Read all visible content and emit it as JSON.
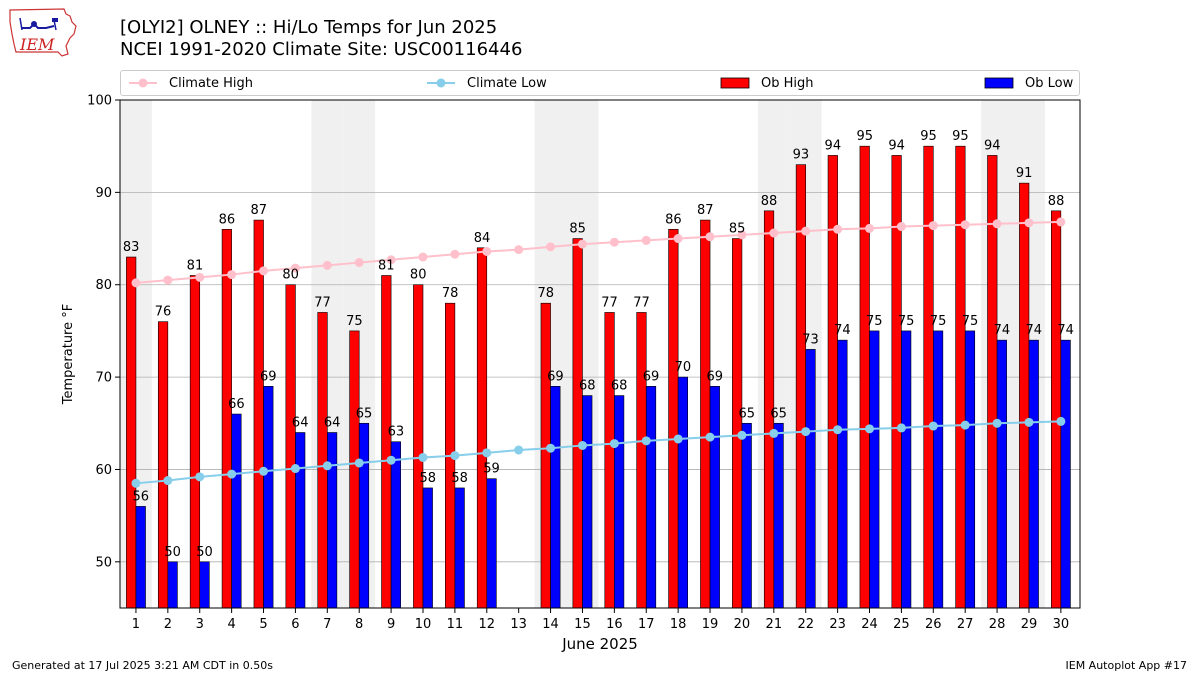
{
  "header": {
    "title_line1": "[OLYI2] OLNEY :: Hi/Lo Temps for Jun 2025",
    "title_line2": "NCEI 1991-2020 Climate Site: USC00116446"
  },
  "logo": {
    "text": "IEM"
  },
  "footer": {
    "generated": "Generated at 17 Jul 2025 3:21 AM CDT in 0.50s",
    "app": "IEM Autoplot App #17"
  },
  "colors": {
    "ob_high": "#ff0000",
    "ob_low": "#0000ff",
    "climate_high": "#ffc0cb",
    "climate_low": "#87ceeb",
    "weekend_band": "#f0f0f0",
    "grid": "#b0b0b0"
  },
  "legend": {
    "climate_high": "Climate High",
    "climate_low": "Climate Low",
    "ob_high": "Ob High",
    "ob_low": "Ob Low"
  },
  "chart_data": {
    "type": "bar",
    "xlabel": "June 2025",
    "ylabel": "Temperature °F",
    "ylim": [
      45,
      100
    ],
    "yticks": [
      50,
      60,
      70,
      80,
      90,
      100
    ],
    "grid": "horizontal",
    "legend_position": "top",
    "categories": [
      "1",
      "2",
      "3",
      "4",
      "5",
      "6",
      "7",
      "8",
      "9",
      "10",
      "11",
      "12",
      "13",
      "14",
      "15",
      "16",
      "17",
      "18",
      "19",
      "20",
      "21",
      "22",
      "23",
      "24",
      "25",
      "26",
      "27",
      "28",
      "29",
      "30"
    ],
    "weekend_days": [
      1,
      7,
      8,
      14,
      15,
      21,
      22,
      28,
      29
    ],
    "series": [
      {
        "name": "Ob High",
        "kind": "bar",
        "values": [
          83,
          76,
          81,
          86,
          87,
          80,
          77,
          75,
          81,
          80,
          78,
          84,
          null,
          78,
          85,
          77,
          77,
          86,
          87,
          85,
          88,
          93,
          94,
          95,
          94,
          95,
          95,
          94,
          91,
          88
        ]
      },
      {
        "name": "Ob Low",
        "kind": "bar",
        "values": [
          56,
          50,
          50,
          66,
          69,
          64,
          64,
          65,
          63,
          58,
          58,
          59,
          null,
          69,
          68,
          68,
          69,
          70,
          69,
          65,
          65,
          73,
          74,
          75,
          75,
          75,
          75,
          74,
          74,
          74
        ]
      },
      {
        "name": "Climate High",
        "kind": "line",
        "values": [
          80.2,
          80.5,
          80.8,
          81.1,
          81.5,
          81.8,
          82.1,
          82.4,
          82.7,
          83.0,
          83.3,
          83.6,
          83.8,
          84.1,
          84.4,
          84.6,
          84.8,
          85.0,
          85.2,
          85.4,
          85.6,
          85.8,
          86.0,
          86.1,
          86.3,
          86.4,
          86.5,
          86.6,
          86.7,
          86.8
        ]
      },
      {
        "name": "Climate Low",
        "kind": "line",
        "values": [
          58.5,
          58.8,
          59.2,
          59.5,
          59.8,
          60.1,
          60.4,
          60.7,
          61.0,
          61.3,
          61.5,
          61.8,
          62.1,
          62.3,
          62.6,
          62.8,
          63.1,
          63.3,
          63.5,
          63.7,
          63.9,
          64.1,
          64.3,
          64.4,
          64.5,
          64.7,
          64.8,
          65.0,
          65.1,
          65.2
        ]
      }
    ]
  }
}
